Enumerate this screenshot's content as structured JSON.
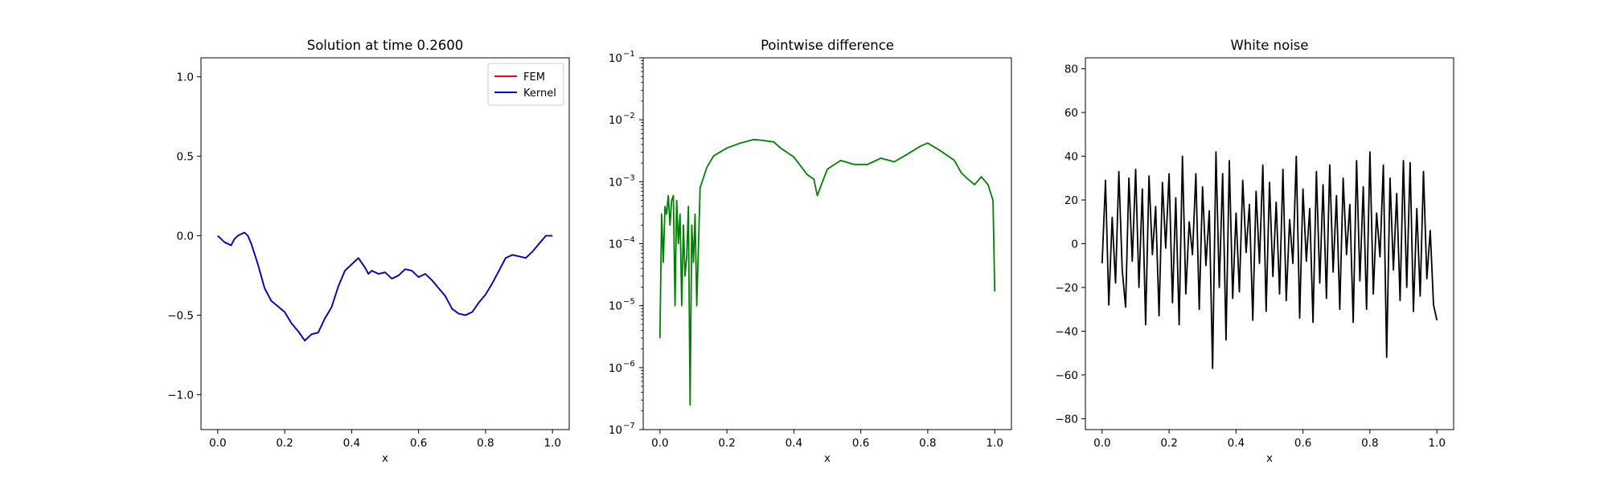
{
  "chart_data": [
    {
      "type": "line",
      "title": "Solution at time 0.2600",
      "xlabel": "x",
      "ylabel": "",
      "xlim": [
        -0.05,
        1.05
      ],
      "ylim": [
        -1.22,
        1.12
      ],
      "xticks": [
        0.0,
        0.2,
        0.4,
        0.6,
        0.8,
        1.0
      ],
      "xtick_labels": [
        "0.0",
        "0.2",
        "0.4",
        "0.6",
        "0.8",
        "1.0"
      ],
      "yticks": [
        -1.0,
        -0.5,
        0.0,
        0.5,
        1.0
      ],
      "ytick_labels": [
        "−1.0",
        "−0.5",
        "0.0",
        "0.5",
        "1.0"
      ],
      "legend_position": "top-right",
      "x": [
        0.0,
        0.02,
        0.04,
        0.05,
        0.06,
        0.08,
        0.09,
        0.1,
        0.12,
        0.14,
        0.16,
        0.2,
        0.22,
        0.24,
        0.26,
        0.28,
        0.3,
        0.32,
        0.34,
        0.36,
        0.38,
        0.4,
        0.42,
        0.44,
        0.45,
        0.46,
        0.48,
        0.5,
        0.52,
        0.54,
        0.56,
        0.58,
        0.6,
        0.62,
        0.64,
        0.66,
        0.68,
        0.7,
        0.72,
        0.74,
        0.76,
        0.78,
        0.8,
        0.82,
        0.84,
        0.86,
        0.88,
        0.9,
        0.92,
        0.94,
        0.96,
        0.98,
        1.0
      ],
      "series": [
        {
          "name": "FEM",
          "color": "#ff0000",
          "values": [
            0.0,
            -0.04,
            -0.06,
            -0.02,
            0.0,
            0.02,
            0.0,
            -0.05,
            -0.18,
            -0.33,
            -0.41,
            -0.48,
            -0.55,
            -0.6,
            -0.66,
            -0.62,
            -0.61,
            -0.52,
            -0.45,
            -0.32,
            -0.22,
            -0.18,
            -0.14,
            -0.2,
            -0.24,
            -0.22,
            -0.24,
            -0.23,
            -0.27,
            -0.25,
            -0.21,
            -0.22,
            -0.26,
            -0.24,
            -0.28,
            -0.33,
            -0.38,
            -0.46,
            -0.49,
            -0.5,
            -0.48,
            -0.42,
            -0.37,
            -0.3,
            -0.22,
            -0.14,
            -0.12,
            -0.13,
            -0.14,
            -0.1,
            -0.05,
            0.0,
            0.0
          ]
        },
        {
          "name": "Kernel",
          "color": "#0000cc",
          "values": [
            0.0,
            -0.04,
            -0.06,
            -0.02,
            0.0,
            0.02,
            0.0,
            -0.05,
            -0.18,
            -0.33,
            -0.41,
            -0.48,
            -0.55,
            -0.6,
            -0.66,
            -0.62,
            -0.61,
            -0.52,
            -0.45,
            -0.32,
            -0.22,
            -0.18,
            -0.14,
            -0.2,
            -0.24,
            -0.22,
            -0.24,
            -0.23,
            -0.27,
            -0.25,
            -0.21,
            -0.22,
            -0.26,
            -0.24,
            -0.28,
            -0.33,
            -0.38,
            -0.46,
            -0.49,
            -0.5,
            -0.48,
            -0.42,
            -0.37,
            -0.3,
            -0.22,
            -0.14,
            -0.12,
            -0.13,
            -0.14,
            -0.1,
            -0.05,
            0.0,
            0.0
          ]
        }
      ]
    },
    {
      "type": "line",
      "title": "Pointwise difference",
      "xlabel": "x",
      "ylabel": "",
      "yscale": "log",
      "xlim": [
        -0.05,
        1.05
      ],
      "ylim": [
        1e-07,
        0.1
      ],
      "xticks": [
        0.0,
        0.2,
        0.4,
        0.6,
        0.8,
        1.0
      ],
      "xtick_labels": [
        "0.0",
        "0.2",
        "0.4",
        "0.6",
        "0.8",
        "1.0"
      ],
      "yticks": [
        1e-07,
        1e-06,
        1e-05,
        0.0001,
        0.001,
        0.01,
        0.1
      ],
      "ytick_labels": [
        "10",
        "10",
        "10",
        "10",
        "10",
        "10",
        "10"
      ],
      "ytick_exponents": [
        "−7",
        "−6",
        "−5",
        "−4",
        "−3",
        "−2",
        "−1"
      ],
      "color": "#008000",
      "x": [
        0.0,
        0.005,
        0.01,
        0.015,
        0.02,
        0.025,
        0.03,
        0.035,
        0.04,
        0.045,
        0.05,
        0.055,
        0.06,
        0.065,
        0.07,
        0.075,
        0.08,
        0.085,
        0.09,
        0.095,
        0.1,
        0.105,
        0.11,
        0.12,
        0.14,
        0.16,
        0.2,
        0.24,
        0.28,
        0.3,
        0.34,
        0.36,
        0.4,
        0.44,
        0.46,
        0.47,
        0.5,
        0.54,
        0.58,
        0.62,
        0.66,
        0.7,
        0.74,
        0.78,
        0.8,
        0.84,
        0.88,
        0.9,
        0.92,
        0.94,
        0.96,
        0.98,
        0.995,
        1.0
      ],
      "values": [
        3e-06,
        0.0003,
        5e-05,
        0.0004,
        0.0003,
        0.0006,
        0.0002,
        0.0005,
        0.0006,
        1e-05,
        0.0005,
        0.0001,
        0.0003,
        1e-05,
        0.0002,
        3e-05,
        6e-05,
        0.0004,
        2.5e-07,
        0.0002,
        5e-05,
        0.0003,
        1e-05,
        0.0008,
        0.0017,
        0.0026,
        0.0035,
        0.0042,
        0.0048,
        0.0047,
        0.0044,
        0.0035,
        0.0025,
        0.0013,
        0.0011,
        0.0006,
        0.0016,
        0.0022,
        0.0019,
        0.0019,
        0.0024,
        0.0021,
        0.0028,
        0.0038,
        0.0042,
        0.0031,
        0.0022,
        0.0014,
        0.0011,
        0.0009,
        0.0012,
        0.0009,
        0.0005,
        1.7e-05
      ]
    },
    {
      "type": "line",
      "title": "White noise",
      "xlabel": "x",
      "ylabel": "",
      "xlim": [
        -0.05,
        1.05
      ],
      "ylim": [
        -85,
        85
      ],
      "xticks": [
        0.0,
        0.2,
        0.4,
        0.6,
        0.8,
        1.0
      ],
      "xtick_labels": [
        "0.0",
        "0.2",
        "0.4",
        "0.6",
        "0.8",
        "1.0"
      ],
      "yticks": [
        -80,
        -60,
        -40,
        -20,
        0,
        20,
        40,
        60,
        80
      ],
      "ytick_labels": [
        "−80",
        "−60",
        "−40",
        "−20",
        "0",
        "20",
        "40",
        "60",
        "80"
      ],
      "color": "#000000",
      "x": [
        0.0,
        0.01,
        0.02,
        0.03,
        0.04,
        0.05,
        0.06,
        0.07,
        0.08,
        0.09,
        0.1,
        0.11,
        0.12,
        0.13,
        0.14,
        0.15,
        0.16,
        0.17,
        0.18,
        0.19,
        0.2,
        0.21,
        0.22,
        0.23,
        0.24,
        0.25,
        0.26,
        0.27,
        0.28,
        0.29,
        0.3,
        0.31,
        0.32,
        0.33,
        0.34,
        0.35,
        0.36,
        0.37,
        0.38,
        0.39,
        0.4,
        0.41,
        0.42,
        0.43,
        0.44,
        0.45,
        0.46,
        0.47,
        0.48,
        0.49,
        0.5,
        0.51,
        0.52,
        0.53,
        0.54,
        0.55,
        0.56,
        0.57,
        0.58,
        0.59,
        0.6,
        0.61,
        0.62,
        0.63,
        0.64,
        0.65,
        0.66,
        0.67,
        0.68,
        0.69,
        0.7,
        0.71,
        0.72,
        0.73,
        0.74,
        0.75,
        0.76,
        0.77,
        0.78,
        0.79,
        0.8,
        0.81,
        0.82,
        0.83,
        0.84,
        0.85,
        0.86,
        0.87,
        0.88,
        0.89,
        0.9,
        0.91,
        0.92,
        0.93,
        0.94,
        0.95,
        0.96,
        0.97,
        0.98,
        0.99,
        1.0
      ],
      "values": [
        -9,
        29,
        -28,
        12,
        -18,
        33,
        -12,
        -29,
        30,
        -8,
        34,
        -20,
        25,
        -37,
        31,
        -5,
        17,
        -33,
        28,
        -2,
        32,
        -27,
        21,
        -37,
        40,
        -23,
        10,
        -5,
        32,
        -30,
        26,
        -10,
        15,
        -57,
        42,
        -20,
        32,
        -44,
        38,
        -25,
        14,
        -22,
        29,
        -4,
        18,
        -35,
        24,
        -9,
        36,
        -31,
        28,
        -15,
        19,
        -23,
        34,
        -26,
        11,
        -9,
        40,
        -34,
        25,
        -8,
        16,
        -36,
        33,
        -18,
        27,
        -25,
        36,
        -13,
        22,
        -30,
        30,
        -5,
        18,
        -36,
        38,
        -17,
        26,
        -30,
        42,
        -23,
        14,
        -6,
        36,
        -52,
        30,
        -12,
        23,
        -26,
        38,
        -20,
        37,
        -31,
        16,
        -24,
        33,
        -16,
        6,
        -28,
        -35
      ]
    }
  ]
}
